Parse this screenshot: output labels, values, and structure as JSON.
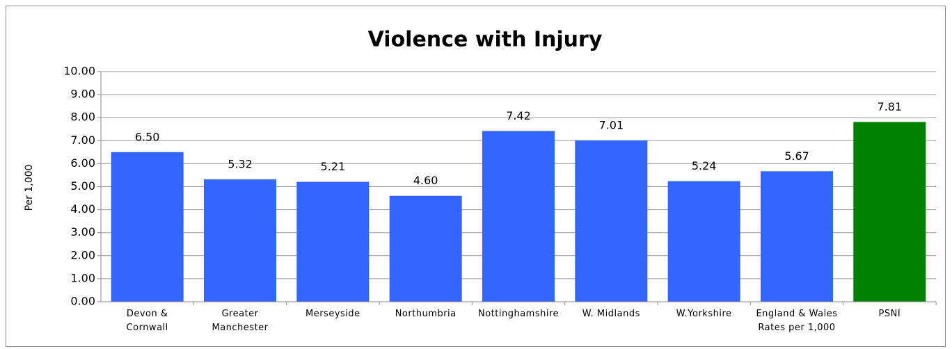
{
  "chart_data": {
    "type": "bar",
    "title": "Violence with Injury",
    "y_label": "Per 1,000",
    "categories": [
      "Devon &\nCornwall",
      "Greater\nManchester",
      "Merseyside",
      "Northumbria",
      "Nottinghamshire",
      "W. Midlands",
      "W.Yorkshire",
      "England & Wales\nRates per 1,000",
      "PSNI"
    ],
    "values": [
      6.5,
      5.32,
      5.21,
      4.6,
      7.42,
      7.01,
      5.24,
      5.67,
      7.81
    ],
    "value_labels": [
      "6.50",
      "5.32",
      "5.21",
      "4.60",
      "7.42",
      "7.01",
      "5.24",
      "5.67",
      "7.81"
    ],
    "colors": [
      "#3366ff",
      "#3366ff",
      "#3366ff",
      "#3366ff",
      "#3366ff",
      "#3366ff",
      "#3366ff",
      "#3366ff",
      "#008000"
    ],
    "ylim": [
      0,
      10
    ],
    "yticks": [
      {
        "value": 0,
        "label": "0.00"
      },
      {
        "value": 1,
        "label": "1.00"
      },
      {
        "value": 2,
        "label": "2.00"
      },
      {
        "value": 3,
        "label": "3.00"
      },
      {
        "value": 4,
        "label": "4.00"
      },
      {
        "value": 5,
        "label": "5.00"
      },
      {
        "value": 6,
        "label": "6.00"
      },
      {
        "value": 7,
        "label": "7.00"
      },
      {
        "value": 8,
        "label": "8.00"
      },
      {
        "value": 9,
        "label": "9.00"
      },
      {
        "value": 10,
        "label": "10.00"
      }
    ],
    "grid": true
  }
}
